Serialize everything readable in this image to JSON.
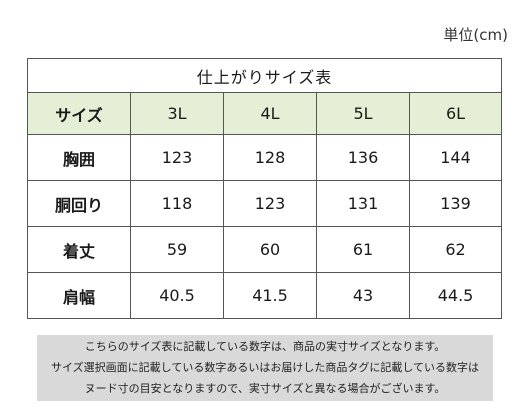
{
  "unit_label": "単位(cm)",
  "table": {
    "caption": "仕上がりサイズ表",
    "header": {
      "label": "サイズ",
      "sizes": [
        "3L",
        "4L",
        "5L",
        "6L"
      ]
    },
    "rows": [
      {
        "label": "胸囲",
        "values": [
          "123",
          "128",
          "136",
          "144"
        ]
      },
      {
        "label": "胴回り",
        "values": [
          "118",
          "123",
          "131",
          "139"
        ]
      },
      {
        "label": "着丈",
        "values": [
          "59",
          "60",
          "61",
          "62"
        ]
      },
      {
        "label": "肩幅",
        "values": [
          "40.5",
          "41.5",
          "43",
          "44.5"
        ]
      }
    ]
  },
  "note": {
    "lines": [
      "こちらのサイズ表に記載している数字は、商品の実寸サイズとなります。",
      "サイズ選択画面に記載している数字あるいはお届けした商品タグに記載している数字は",
      "ヌード寸の目安となりますので、実寸サイズと異なる場合がございます。"
    ]
  }
}
